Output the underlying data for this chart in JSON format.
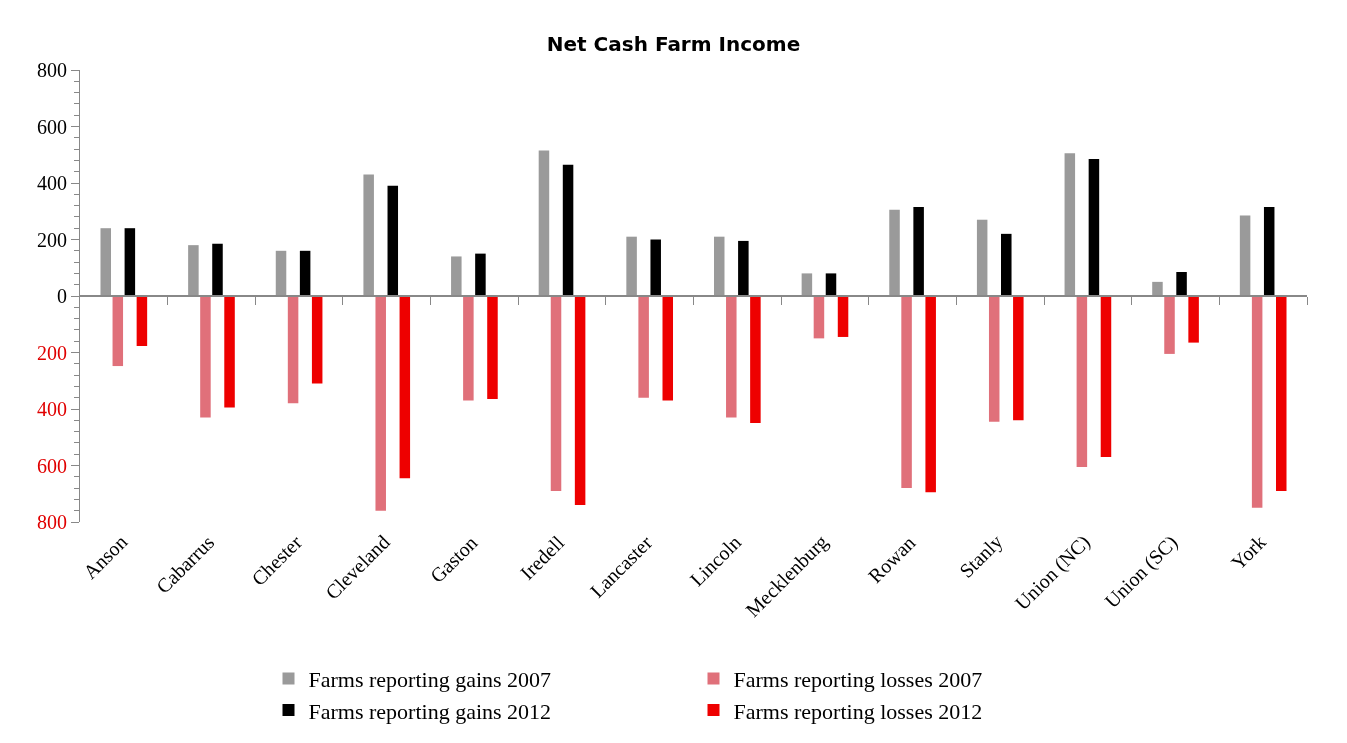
{
  "chart_data": {
    "type": "bar",
    "title": "Net Cash Farm Income",
    "categories": [
      "Anson",
      "Cabarrus",
      "Chester",
      "Cleveland",
      "Gaston",
      "Iredell",
      "Lancaster",
      "Lincoln",
      "Mecklenburg",
      "Rowan",
      "Stanly",
      "Union (NC)",
      "Union (SC)",
      "York"
    ],
    "series": [
      {
        "name": "Farms reporting gains 2007",
        "color": "#9a9a9a",
        "values": [
          240,
          180,
          160,
          430,
          140,
          515,
          210,
          210,
          80,
          305,
          270,
          505,
          50,
          285
        ]
      },
      {
        "name": "Farms reporting losses 2007",
        "color": "#e0707a",
        "values": [
          -248,
          -430,
          -380,
          -760,
          -370,
          -690,
          -360,
          -430,
          -150,
          -680,
          -445,
          -605,
          -205,
          -750
        ]
      },
      {
        "name": "Farms reporting gains 2012",
        "color": "#000000",
        "values": [
          240,
          185,
          160,
          390,
          150,
          465,
          200,
          195,
          80,
          315,
          220,
          485,
          85,
          315
        ]
      },
      {
        "name": "Farms reporting losses 2012",
        "color": "#ee0000",
        "values": [
          -177,
          -395,
          -310,
          -645,
          -365,
          -740,
          -370,
          -450,
          -145,
          -695,
          -440,
          -570,
          -165,
          -690
        ]
      }
    ],
    "ylim": [
      -800,
      800
    ],
    "yticks": [
      {
        "value": -800,
        "label": "800"
      },
      {
        "value": -600,
        "label": "600"
      },
      {
        "value": -400,
        "label": "400"
      },
      {
        "value": -200,
        "label": "200"
      },
      0,
      200,
      400,
      600,
      800
    ],
    "legend": "bottom"
  }
}
